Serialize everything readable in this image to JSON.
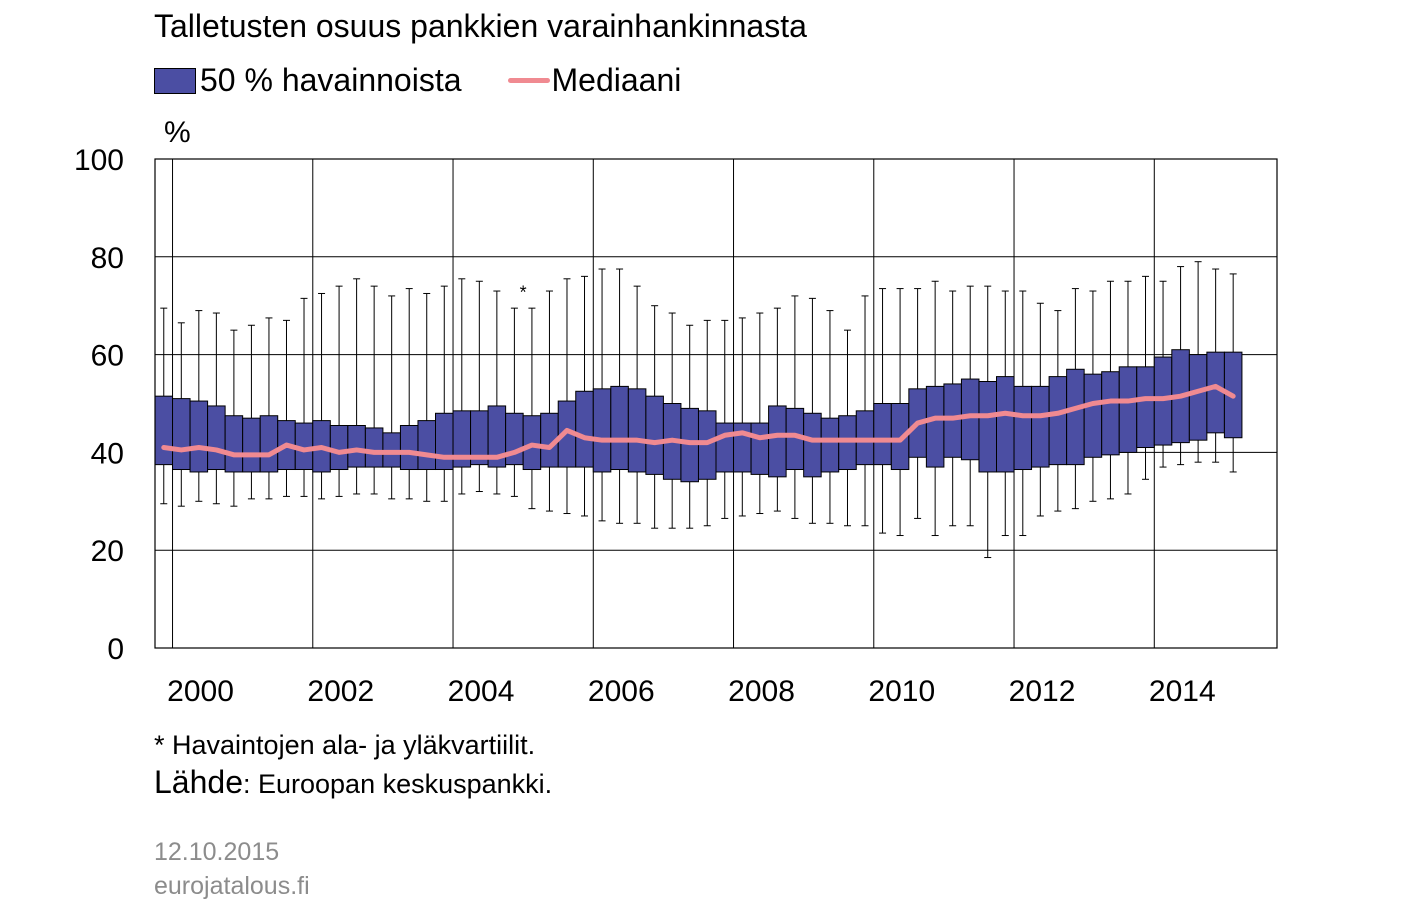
{
  "title": "Talletusten osuus pankkien varainhankinnasta",
  "legend": {
    "box_label": "50 % havainnoista",
    "line_label": "Mediaani"
  },
  "note": "* Havaintojen ala- ja yläkvartiilit.",
  "source": {
    "label": "Lähde",
    "text": ": Euroopan keskuspankki."
  },
  "date": "12.10.2015",
  "site": "eurojatalous.fi",
  "colors": {
    "box": "#4b4ea3",
    "median": "#f08a91",
    "grid": "#000000"
  },
  "chart_data": {
    "type": "box",
    "title": "Talletusten osuus pankkien varainhankinnasta",
    "ylabel": "%",
    "ylim": [
      0,
      100
    ],
    "yticks": [
      0,
      20,
      40,
      60,
      80,
      100
    ],
    "xlim": [
      1999.75,
      2015.75
    ],
    "xticks": [
      2000,
      2002,
      2004,
      2006,
      2008,
      2010,
      2012,
      2014
    ],
    "grid": true,
    "legend_position": "top",
    "annotation": {
      "text": "*",
      "x": 2005.0,
      "y": 71.5
    },
    "x": [
      1999.875,
      2000.125,
      2000.375,
      2000.625,
      2000.875,
      2001.125,
      2001.375,
      2001.625,
      2001.875,
      2002.125,
      2002.375,
      2002.625,
      2002.875,
      2003.125,
      2003.375,
      2003.625,
      2003.875,
      2004.125,
      2004.375,
      2004.625,
      2004.875,
      2005.125,
      2005.375,
      2005.625,
      2005.875,
      2006.125,
      2006.375,
      2006.625,
      2006.875,
      2007.125,
      2007.375,
      2007.625,
      2007.875,
      2008.125,
      2008.375,
      2008.625,
      2008.875,
      2009.125,
      2009.375,
      2009.625,
      2009.875,
      2010.125,
      2010.375,
      2010.625,
      2010.875,
      2011.125,
      2011.375,
      2011.625,
      2011.875,
      2012.125,
      2012.375,
      2012.625,
      2012.875,
      2013.125,
      2013.375,
      2013.625,
      2013.875,
      2014.125,
      2014.375,
      2014.625,
      2014.875,
      2015.125
    ],
    "q1": [
      37.5,
      36.5,
      36.0,
      36.5,
      36.0,
      36.0,
      36.0,
      36.5,
      36.5,
      36.0,
      36.5,
      37.0,
      37.0,
      37.0,
      36.5,
      36.5,
      36.5,
      37.0,
      37.5,
      37.0,
      37.5,
      36.5,
      37.0,
      37.0,
      37.0,
      36.0,
      36.5,
      36.0,
      35.5,
      34.5,
      34.0,
      34.5,
      36.0,
      36.0,
      35.5,
      35.0,
      36.5,
      35.0,
      36.0,
      36.5,
      37.5,
      37.5,
      36.5,
      39.0,
      37.0,
      39.0,
      38.5,
      36.0,
      36.0,
      36.5,
      37.0,
      37.5,
      37.5,
      39.0,
      39.5,
      40.0,
      41.0,
      41.5,
      42.0,
      42.5,
      44.0,
      43.0
    ],
    "q3": [
      51.5,
      51.0,
      50.5,
      49.5,
      47.5,
      47.0,
      47.5,
      46.5,
      46.0,
      46.5,
      45.5,
      45.5,
      45.0,
      44.0,
      45.5,
      46.5,
      48.0,
      48.5,
      48.5,
      49.5,
      48.0,
      47.5,
      48.0,
      50.5,
      52.5,
      53.0,
      53.5,
      53.0,
      51.5,
      50.0,
      49.0,
      48.5,
      46.0,
      46.0,
      46.0,
      49.5,
      49.0,
      48.0,
      47.0,
      47.5,
      48.5,
      50.0,
      50.0,
      53.0,
      53.5,
      54.0,
      55.0,
      54.5,
      55.5,
      53.5,
      53.5,
      55.5,
      57.0,
      56.0,
      56.5,
      57.5,
      57.5,
      59.5,
      61.0,
      60.0,
      60.5,
      60.5
    ],
    "low": [
      29.5,
      29.0,
      30.0,
      29.5,
      29.0,
      30.5,
      30.5,
      31.0,
      31.0,
      30.5,
      31.0,
      31.5,
      31.5,
      30.5,
      30.5,
      30.0,
      30.0,
      31.5,
      32.0,
      31.5,
      31.0,
      28.5,
      28.0,
      27.5,
      27.0,
      26.0,
      25.5,
      25.5,
      24.5,
      24.5,
      24.5,
      25.0,
      26.5,
      27.0,
      27.5,
      28.0,
      26.5,
      25.5,
      25.5,
      25.0,
      25.0,
      23.5,
      23.0,
      26.5,
      23.0,
      25.0,
      25.0,
      18.5,
      23.0,
      23.0,
      27.0,
      28.0,
      28.5,
      30.0,
      30.5,
      31.5,
      34.5,
      37.0,
      37.5,
      38.0,
      38.0,
      36.0
    ],
    "high": [
      69.5,
      66.5,
      69.0,
      68.5,
      65.0,
      66.0,
      67.5,
      67.0,
      71.5,
      72.5,
      74.0,
      75.5,
      74.0,
      72.0,
      73.5,
      72.5,
      74.0,
      75.5,
      75.0,
      73.0,
      69.5,
      69.5,
      73.0,
      75.5,
      76.0,
      77.5,
      77.5,
      74.0,
      70.0,
      68.5,
      66.0,
      67.0,
      67.0,
      67.5,
      68.5,
      69.5,
      72.0,
      71.5,
      69.0,
      65.0,
      72.0,
      73.5,
      73.5,
      73.5,
      75.0,
      73.0,
      74.0,
      74.0,
      73.0,
      73.0,
      70.5,
      69.0,
      73.5,
      73.0,
      75.0,
      75.0,
      76.0,
      75.0,
      78.0,
      79.0,
      77.5,
      76.5
    ],
    "median": [
      41.0,
      40.5,
      41.0,
      40.5,
      39.5,
      39.5,
      39.5,
      41.5,
      40.5,
      41.0,
      40.0,
      40.5,
      40.0,
      40.0,
      40.0,
      39.5,
      39.0,
      39.0,
      39.0,
      39.0,
      40.0,
      41.5,
      41.0,
      44.5,
      43.0,
      42.5,
      42.5,
      42.5,
      42.0,
      42.5,
      42.0,
      42.0,
      43.5,
      44.0,
      43.0,
      43.5,
      43.5,
      42.5,
      42.5,
      42.5,
      42.5,
      42.5,
      42.5,
      46.0,
      47.0,
      47.0,
      47.5,
      47.5,
      48.0,
      47.5,
      47.5,
      48.0,
      49.0,
      50.0,
      50.5,
      50.5,
      51.0,
      51.0,
      51.5,
      52.5,
      53.5,
      51.5
    ]
  }
}
